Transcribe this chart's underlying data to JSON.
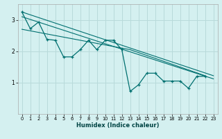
{
  "title": "",
  "xlabel": "Humidex (Indice chaleur)",
  "background_color": "#d4f0f0",
  "grid_color": "#b8dada",
  "line_color": "#007070",
  "xlim": [
    -0.5,
    23.5
  ],
  "ylim": [
    0,
    3.5
  ],
  "yticks": [
    1,
    2,
    3
  ],
  "xticks": [
    0,
    1,
    2,
    3,
    4,
    5,
    6,
    7,
    8,
    9,
    10,
    11,
    12,
    13,
    14,
    15,
    16,
    17,
    18,
    19,
    20,
    21,
    22,
    23
  ],
  "main_series": {
    "x": [
      0,
      1,
      2,
      3,
      4,
      5,
      6,
      7,
      8,
      9,
      10,
      11,
      12,
      13,
      14,
      15,
      16,
      17,
      18,
      19,
      20,
      21,
      22,
      23
    ],
    "y": [
      3.25,
      2.72,
      2.93,
      2.38,
      2.35,
      1.82,
      1.82,
      2.05,
      2.35,
      2.05,
      2.35,
      2.35,
      2.05,
      0.72,
      0.93,
      1.3,
      1.3,
      1.05,
      1.05,
      1.05,
      0.82,
      1.2,
      1.2,
      null
    ]
  },
  "trend_lines": [
    {
      "x": [
        0,
        23
      ],
      "y": [
        3.25,
        1.22
      ]
    },
    {
      "x": [
        0,
        23
      ],
      "y": [
        3.1,
        1.12
      ]
    },
    {
      "x": [
        0,
        13,
        22
      ],
      "y": [
        2.7,
        2.05,
        1.22
      ]
    }
  ]
}
